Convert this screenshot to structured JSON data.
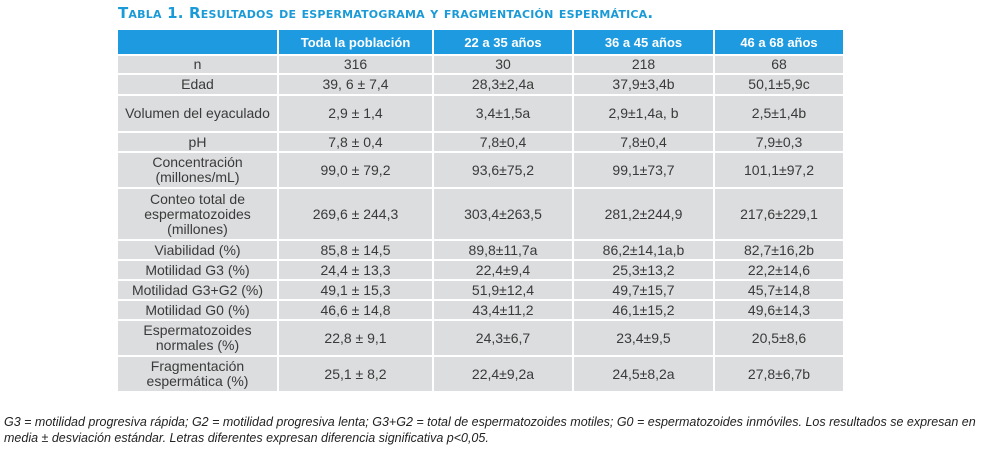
{
  "title": "Tabla 1. Resultados de espermatograma y fragmentación espermática.",
  "table": {
    "headers": [
      "",
      "Toda la población",
      "22 a 35 años",
      "36 a 45 años",
      "46 a 68 años"
    ],
    "rows": [
      {
        "label": "n",
        "values": [
          "316",
          "30",
          "218",
          "68"
        ]
      },
      {
        "label": "Edad",
        "values": [
          "39, 6 ± 7,4",
          "28,3±2,4a",
          "37,9±3,4b",
          "50,1±5,9c"
        ]
      },
      {
        "label": "Volumen del eyaculado",
        "values": [
          "2,9 ± 1,4",
          "3,4±1,5a",
          "2,9±1,4a, b",
          "2,5±1,4b"
        ]
      },
      {
        "label": "pH",
        "values": [
          "7,8 ± 0,4",
          "7,8±0,4",
          "7,8±0,4",
          "7,9±0,3"
        ]
      },
      {
        "label": "Concentración (millones/mL)",
        "values": [
          "99,0 ± 79,2",
          "93,6±75,2",
          "99,1±73,7",
          "101,1±97,2"
        ]
      },
      {
        "label": "Conteo total de espermatozoides (millones)",
        "values": [
          "269,6 ± 244,3",
          "303,4±263,5",
          "281,2±244,9",
          "217,6±229,1"
        ]
      },
      {
        "label": "Viabilidad (%)",
        "values": [
          "85,8 ± 14,5",
          "89,8±11,7a",
          "86,2±14,1a,b",
          "82,7±16,2b"
        ]
      },
      {
        "label": "Motilidad G3 (%)",
        "values": [
          "24,4 ± 13,3",
          "22,4±9,4",
          "25,3±13,2",
          "22,2±14,6"
        ]
      },
      {
        "label": "Motilidad G3+G2 (%)",
        "values": [
          "49,1 ± 15,3",
          "51,9±12,4",
          "49,7±15,7",
          "45,7±14,8"
        ]
      },
      {
        "label": "Motilidad G0 (%)",
        "values": [
          "46,6 ± 14,8",
          "43,4±11,2",
          "46,1±15,2",
          "49,6±14,3"
        ]
      },
      {
        "label": "Espermatozoides normales (%)",
        "values": [
          "22,8 ± 9,1",
          "24,3±6,7",
          "23,4±9,5",
          "20,5±8,6"
        ]
      },
      {
        "label": "Fragmentación espermática (%)",
        "values": [
          "25,1 ± 8,2",
          "22,4±9,2a",
          "24,5±8,2a",
          "27,8±6,7b"
        ]
      }
    ]
  },
  "footnote": "G3 = motilidad progresiva rápida; G2 = motilidad progresiva lenta; G3+G2 = total de espermatozoides motiles; G0 = espermatozoides inmóviles. Los resultados se expresan en media ± desviación estándar. Letras diferentes expresan diferencia significativa p<0,05.",
  "colors": {
    "header_bg": "#1e9be0",
    "cell_bg": "#dcdddf",
    "title": "#1a9bd7"
  }
}
